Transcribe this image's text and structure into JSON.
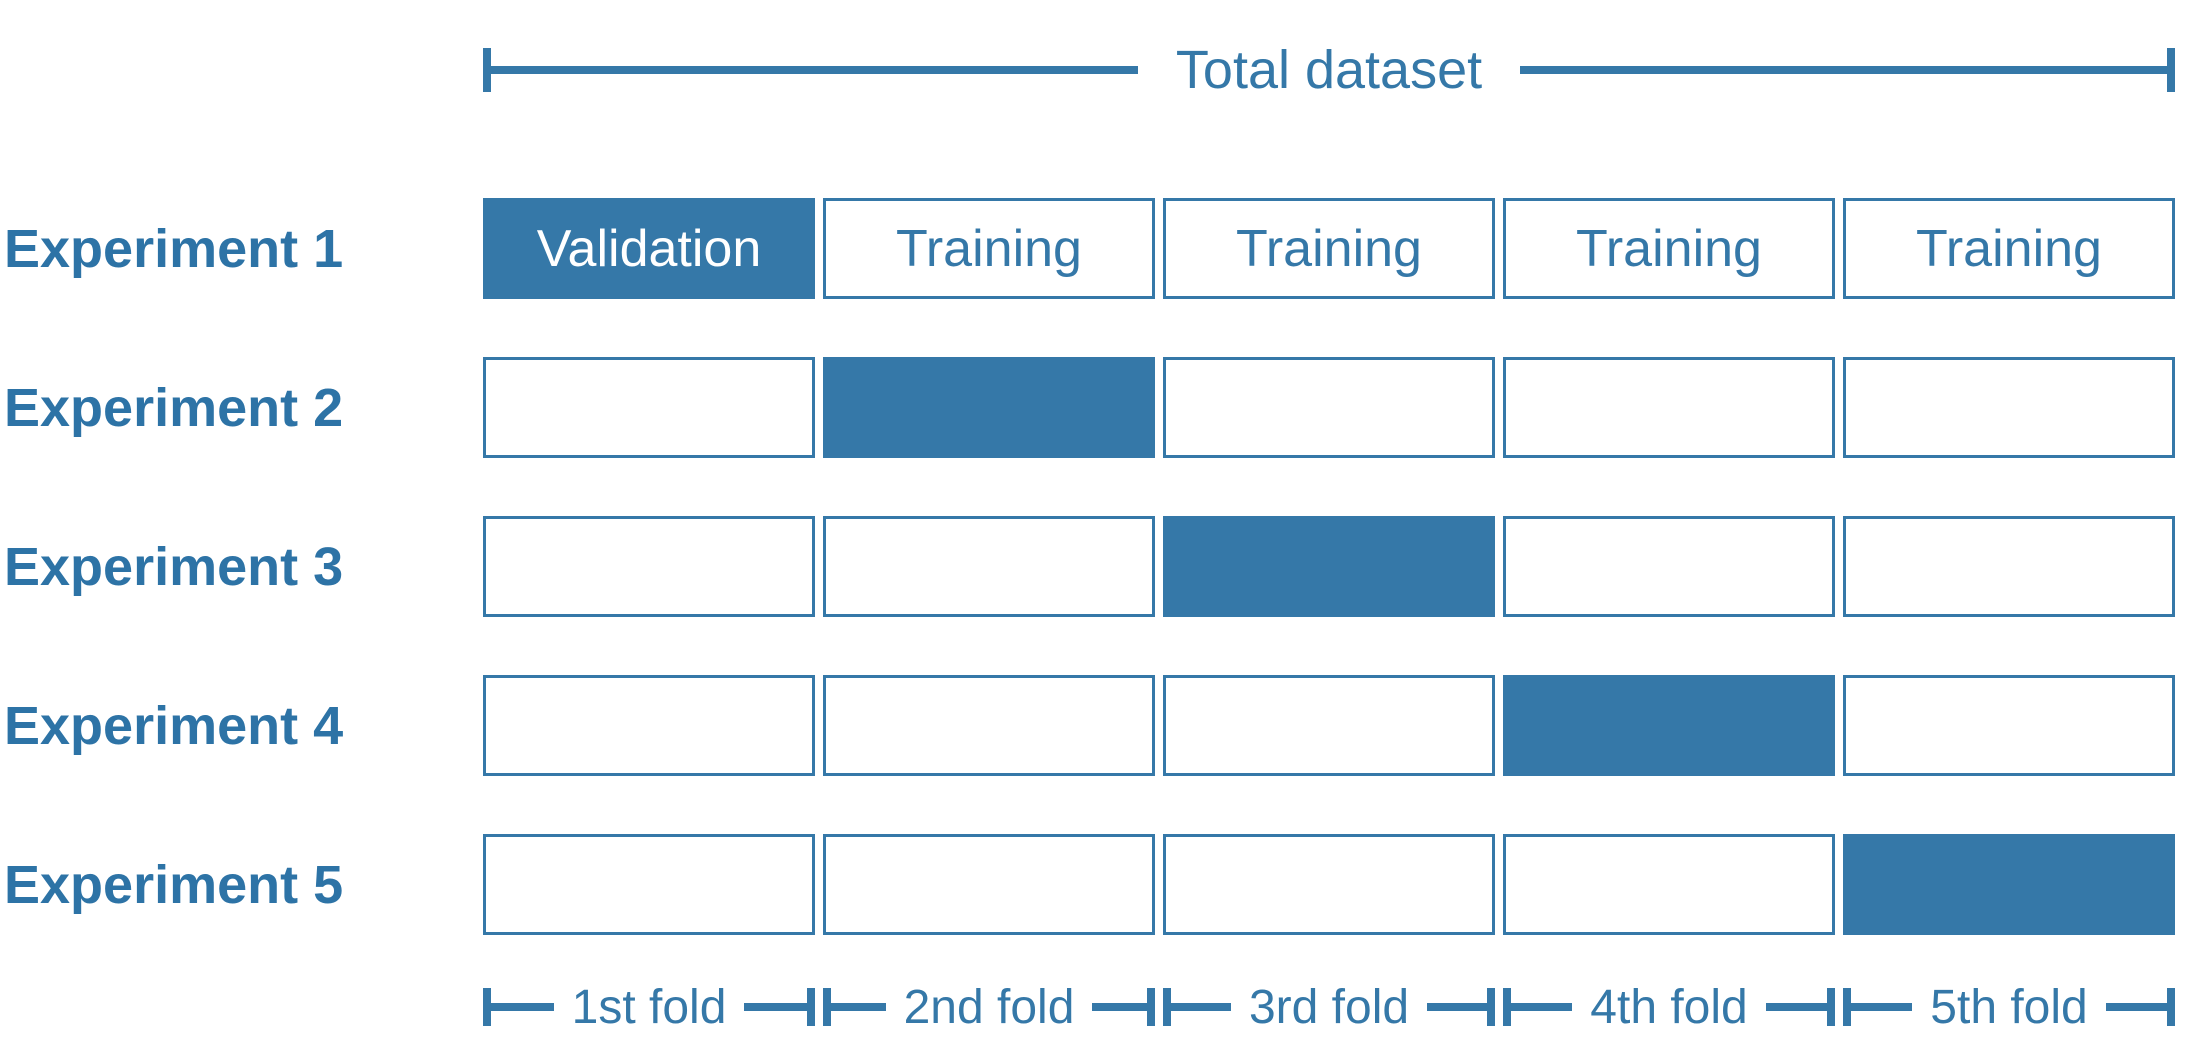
{
  "palette": {
    "accent": "#3578a8",
    "label_color": "#2d73a6",
    "validation_text": "#ffffff"
  },
  "header": {
    "label": "Total dataset"
  },
  "rows": [
    {
      "label": "Experiment 1",
      "cells": [
        {
          "state": "validation",
          "text": "Validation"
        },
        {
          "state": "training",
          "text": "Training"
        },
        {
          "state": "training",
          "text": "Training"
        },
        {
          "state": "training",
          "text": "Training"
        },
        {
          "state": "training",
          "text": "Training"
        }
      ]
    },
    {
      "label": "Experiment 2",
      "cells": [
        {
          "state": "empty"
        },
        {
          "state": "filled"
        },
        {
          "state": "empty"
        },
        {
          "state": "empty"
        },
        {
          "state": "empty"
        }
      ]
    },
    {
      "label": "Experiment 3",
      "cells": [
        {
          "state": "empty"
        },
        {
          "state": "empty"
        },
        {
          "state": "filled"
        },
        {
          "state": "empty"
        },
        {
          "state": "empty"
        }
      ]
    },
    {
      "label": "Experiment 4",
      "cells": [
        {
          "state": "empty"
        },
        {
          "state": "empty"
        },
        {
          "state": "empty"
        },
        {
          "state": "filled"
        },
        {
          "state": "empty"
        }
      ]
    },
    {
      "label": "Experiment 5",
      "cells": [
        {
          "state": "empty"
        },
        {
          "state": "empty"
        },
        {
          "state": "empty"
        },
        {
          "state": "empty"
        },
        {
          "state": "filled"
        }
      ]
    }
  ],
  "footer": {
    "folds": [
      "1st fold",
      "2nd fold",
      "3rd fold",
      "4th fold",
      "5th fold"
    ]
  }
}
